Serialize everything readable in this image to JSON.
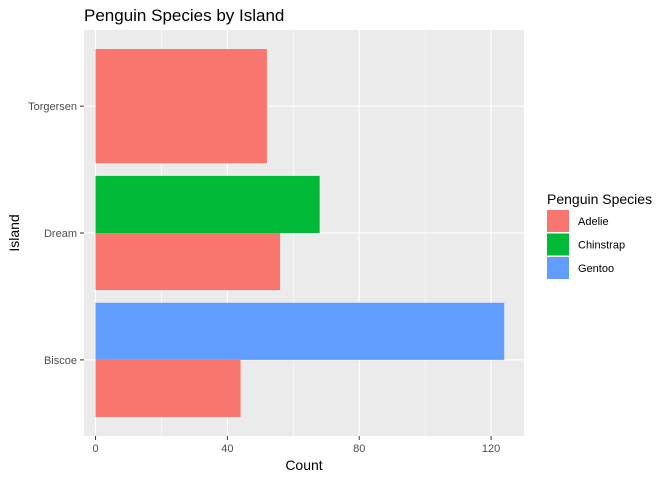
{
  "chart_data": {
    "type": "bar",
    "orientation": "horizontal",
    "position": "dodge",
    "title": "Penguin Species by Island",
    "xlabel": "Count",
    "ylabel": "Island",
    "categories": [
      "Biscoe",
      "Dream",
      "Torgersen"
    ],
    "xlim": [
      -3.5,
      130
    ],
    "x_ticks": [
      0,
      40,
      80,
      120
    ],
    "grid": true,
    "legend": {
      "title": "Penguin Species",
      "placement": "right",
      "entries": [
        "Adelie",
        "Chinstrap",
        "Gentoo"
      ]
    },
    "bars": [
      {
        "category": "Biscoe",
        "species": "Adelie",
        "value": 44
      },
      {
        "category": "Biscoe",
        "species": "Gentoo",
        "value": 124
      },
      {
        "category": "Dream",
        "species": "Adelie",
        "value": 56
      },
      {
        "category": "Dream",
        "species": "Chinstrap",
        "value": 68
      },
      {
        "category": "Torgersen",
        "species": "Adelie",
        "value": 52
      }
    ],
    "colors": {
      "Adelie": "#F8766D",
      "Chinstrap": "#00BA38",
      "Gentoo": "#619CFF",
      "panel_background": "#EBEBEB",
      "grid": "#FFFFFF",
      "tick": "#333333"
    }
  }
}
